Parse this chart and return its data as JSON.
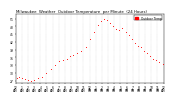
{
  "title": "Milwaukee  Weather  Outdoor Temperature  per Minute  (24 Hours)",
  "line_color": "#ff0000",
  "background_color": "#ffffff",
  "grid_color": "#bbbbbb",
  "ylim": [
    26,
    53
  ],
  "xlim": [
    0,
    1440
  ],
  "title_fontsize": 2.8,
  "tick_fontsize": 2.2,
  "legend_label": "Outdoor Temp",
  "legend_color": "#ff0000",
  "x_tick_positions": [
    0,
    60,
    120,
    180,
    240,
    300,
    360,
    420,
    480,
    540,
    600,
    660,
    720,
    780,
    840,
    900,
    960,
    1020,
    1080,
    1140,
    1200,
    1260,
    1320,
    1380,
    1440
  ],
  "x_tick_labels": [
    "12\nAM",
    "1\nAM",
    "2\nAM",
    "3\nAM",
    "4\nAM",
    "5\nAM",
    "6\nAM",
    "7\nAM",
    "8\nAM",
    "9\nAM",
    "10\nAM",
    "11\nAM",
    "12\nPM",
    "1\nPM",
    "2\nPM",
    "3\nPM",
    "4\nPM",
    "5\nPM",
    "6\nPM",
    "7\nPM",
    "8\nPM",
    "9\nPM",
    "10\nPM",
    "11\nPM",
    "12\nAM"
  ],
  "y_tick_positions": [
    27,
    30,
    33,
    36,
    39,
    42,
    45,
    48,
    51
  ],
  "y_tick_labels": [
    "27",
    "30",
    "33",
    "36",
    "39",
    "42",
    "45",
    "48",
    "51"
  ],
  "data_x": [
    10,
    30,
    60,
    90,
    120,
    150,
    180,
    220,
    260,
    300,
    340,
    380,
    420,
    460,
    500,
    530,
    560,
    600,
    640,
    680,
    720,
    760,
    800,
    830,
    860,
    890,
    920,
    950,
    980,
    1010,
    1040,
    1070,
    1100,
    1130,
    1160,
    1190,
    1220,
    1250,
    1280,
    1310,
    1340,
    1370,
    1400,
    1430
  ],
  "data_y": [
    28.0,
    28.2,
    27.8,
    27.5,
    27.2,
    27.0,
    27.3,
    27.8,
    28.5,
    30.0,
    31.5,
    33.0,
    34.5,
    35.0,
    35.5,
    36.5,
    37.0,
    37.5,
    38.5,
    40.0,
    43.0,
    46.0,
    48.5,
    50.0,
    51.0,
    50.5,
    49.5,
    48.0,
    47.0,
    46.5,
    47.5,
    46.0,
    44.5,
    43.0,
    41.5,
    40.5,
    40.0,
    38.5,
    37.5,
    36.5,
    35.5,
    35.0,
    34.0,
    33.5
  ]
}
